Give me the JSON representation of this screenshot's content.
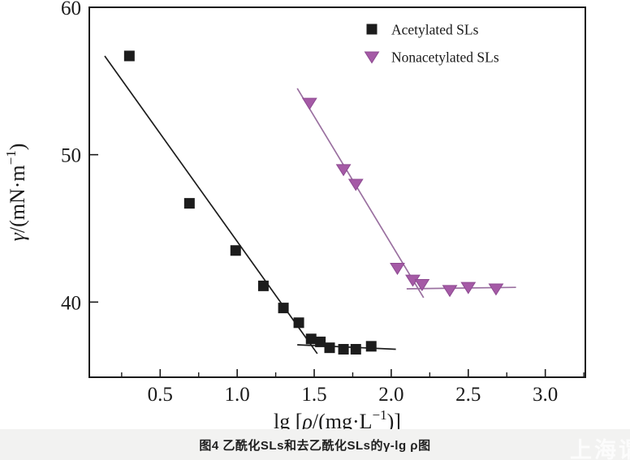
{
  "colors": {
    "axis": "#1a1a1a",
    "acetylated_marker": "#1c1c1c",
    "acetylated_line": "#1c1c1c",
    "nonacetylated_marker": "#a55aa6",
    "nonacetylated_marker_edge": "#8d4a91",
    "nonacetylated_line": "#9a70a0",
    "caption_strip_bg": "#f2f2f1",
    "watermark": "#ffffff"
  },
  "legend": {
    "items": [
      {
        "label": "Acetylated SLs",
        "marker": "square-icon",
        "color": "#1c1c1c"
      },
      {
        "label": "Nonacetylated SLs",
        "marker": "triangle-down-icon",
        "color": "#a55aa6"
      }
    ]
  },
  "caption": {
    "text": "图4  乙酰化SLs和去乙酰化SLs的γ-lg ρ图"
  },
  "watermark": {
    "text": "上海谓"
  },
  "chart_data": {
    "type": "scatter",
    "title": "",
    "xlabel": "lg [ρ/(mg·L⁻¹)]",
    "ylabel": "γ/(mN·m⁻¹)",
    "xlabel_parts": {
      "pre": "lg [",
      "sym": "ρ",
      "mid": "/(mg·L",
      "sup": "−1",
      "post": ")]"
    },
    "ylabel_parts": {
      "sym": "γ",
      "mid": "/(mN·m",
      "sup": "−1",
      "post": ")"
    },
    "xlim": [
      0.04,
      3.26
    ],
    "ylim": [
      34.9,
      60
    ],
    "x_ticks": [
      {
        "value": 0.5,
        "label": "0.5"
      },
      {
        "value": 1.0,
        "label": "1.0"
      },
      {
        "value": 1.5,
        "label": "1.5"
      },
      {
        "value": 2.0,
        "label": "2.0"
      },
      {
        "value": 2.5,
        "label": "2.5"
      },
      {
        "value": 3.0,
        "label": "3.0"
      }
    ],
    "x_minor_ticks": [
      0.25,
      0.75,
      1.25,
      1.75,
      2.25,
      2.75,
      3.25
    ],
    "y_ticks": [
      {
        "value": 60,
        "label": "60"
      },
      {
        "value": 50,
        "label": "50"
      },
      {
        "value": 40,
        "label": "40"
      }
    ],
    "grid": false,
    "legend_position": "top-right-inside",
    "series": [
      {
        "name": "Acetylated SLs",
        "marker": "square",
        "color": "#1c1c1c",
        "points": [
          [
            0.3,
            56.7
          ],
          [
            0.69,
            46.7
          ],
          [
            0.99,
            43.5
          ],
          [
            1.17,
            41.1
          ],
          [
            1.3,
            39.6
          ],
          [
            1.4,
            38.6
          ],
          [
            1.48,
            37.5
          ],
          [
            1.54,
            37.3
          ],
          [
            1.6,
            36.9
          ],
          [
            1.69,
            36.8
          ],
          [
            1.77,
            36.8
          ],
          [
            1.87,
            37.0
          ]
        ]
      },
      {
        "name": "Nonacetylated SLs",
        "marker": "triangle-down",
        "color": "#a55aa6",
        "points": [
          [
            1.47,
            53.5
          ],
          [
            1.69,
            49.0
          ],
          [
            1.77,
            48.0
          ],
          [
            2.04,
            42.3
          ],
          [
            2.14,
            41.5
          ],
          [
            2.2,
            41.2
          ],
          [
            2.38,
            40.8
          ],
          [
            2.5,
            41.0
          ],
          [
            2.68,
            40.9
          ]
        ]
      }
    ],
    "fit_lines": [
      {
        "series": "Acetylated SLs",
        "color": "#1c1c1c",
        "from": [
          0.14,
          56.7
        ],
        "to": [
          1.52,
          36.5
        ]
      },
      {
        "series": "Acetylated SLs",
        "color": "#1c1c1c",
        "from": [
          1.39,
          37.1
        ],
        "to": [
          2.03,
          36.8
        ]
      },
      {
        "series": "Nonacetylated SLs",
        "color": "#9a70a0",
        "from": [
          1.39,
          54.5
        ],
        "to": [
          2.21,
          40.3
        ]
      },
      {
        "series": "Nonacetylated SLs",
        "color": "#9a70a0",
        "from": [
          2.1,
          40.9
        ],
        "to": [
          2.81,
          41.0
        ]
      }
    ]
  }
}
